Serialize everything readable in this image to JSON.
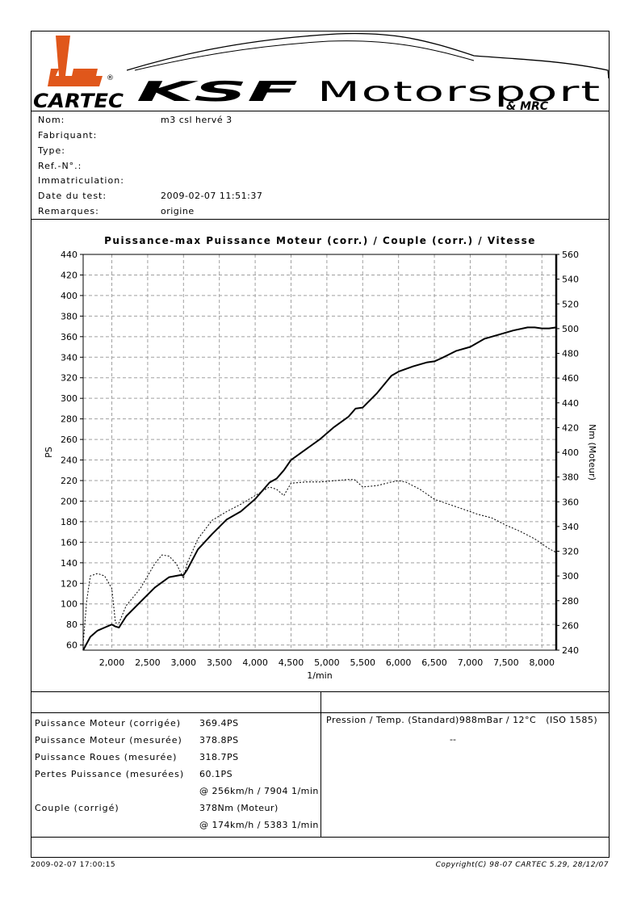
{
  "logo": {
    "cartec_text": "CARTEC",
    "registered_mark": "®",
    "ksf_text": "KSF",
    "motorsport_text": "Motorsport",
    "mrc_text": "& MRC"
  },
  "info": {
    "labels": [
      "Nom:",
      "Fabriquant:",
      "Type:",
      "Ref.-N°.:",
      "Immatriculation:",
      "Date du test:",
      "Remarques:"
    ],
    "values": [
      "m3 csl hervé 3",
      "",
      "",
      "",
      "",
      "2009-02-07 11:51:37",
      "origine"
    ]
  },
  "chart_data": {
    "type": "line",
    "title": "Puissance-max Puissance Moteur (corr.) / Couple (corr.) / Vitesse",
    "xlabel": "1/min",
    "ylabel_left": "PS",
    "ylabel_right": "Nm (Moteur)",
    "xlim": [
      1600,
      8200
    ],
    "ylim_left": [
      55,
      440
    ],
    "ylim_right": [
      240,
      560
    ],
    "x_ticks": [
      "2,000",
      "2,500",
      "3,000",
      "3,500",
      "4,000",
      "4,500",
      "5,000",
      "5,500",
      "6,000",
      "6,500",
      "7,000",
      "7,500",
      "8,000"
    ],
    "x_tick_values": [
      2000,
      2500,
      3000,
      3500,
      4000,
      4500,
      5000,
      5500,
      6000,
      6500,
      7000,
      7500,
      8000
    ],
    "y_left_ticks": [
      60,
      80,
      100,
      120,
      140,
      160,
      180,
      200,
      220,
      240,
      260,
      280,
      300,
      320,
      340,
      360,
      380,
      400,
      420,
      440
    ],
    "y_right_ticks": [
      240,
      260,
      280,
      300,
      320,
      340,
      360,
      380,
      400,
      420,
      440,
      460,
      480,
      500,
      520,
      540,
      560
    ],
    "grid": true,
    "series": [
      {
        "name": "",
        "axis": "left",
        "style": "solid",
        "x": [
          1600,
          1700,
          1800,
          1900,
          2000,
          2050,
          2100,
          2200,
          2400,
          2600,
          2800,
          2950,
          3000,
          3050,
          3200,
          3400,
          3600,
          3800,
          4000,
          4200,
          4300,
          4400,
          4500,
          4700,
          4900,
          5100,
          5300,
          5400,
          5500,
          5700,
          5900,
          6000,
          6200,
          6400,
          6500,
          6600,
          6800,
          7000,
          7200,
          7400,
          7600,
          7800,
          7900,
          8000,
          8100,
          8200
        ],
        "values": [
          55,
          68,
          74,
          77,
          80,
          78,
          77,
          88,
          102,
          116,
          126,
          128,
          128,
          133,
          153,
          168,
          182,
          190,
          202,
          218,
          222,
          230,
          240,
          250,
          260,
          272,
          282,
          290,
          291,
          305,
          322,
          326,
          331,
          335,
          336,
          339,
          346,
          350,
          358,
          362,
          366,
          369,
          369,
          368,
          368,
          369
        ]
      },
      {
        "name": "",
        "axis": "right",
        "style": "dashed",
        "x": [
          1600,
          1650,
          1700,
          1800,
          1900,
          2000,
          2050,
          2100,
          2200,
          2400,
          2600,
          2700,
          2800,
          2900,
          3000,
          3050,
          3200,
          3400,
          3600,
          3800,
          4000,
          4200,
          4300,
          4400,
          4500,
          4700,
          4900,
          5100,
          5300,
          5383,
          5500,
          5700,
          5900,
          6000,
          6100,
          6300,
          6500,
          6700,
          6900,
          7100,
          7300,
          7500,
          7700,
          7900,
          8000,
          8100,
          8200
        ],
        "values": [
          245,
          280,
          300,
          302,
          300,
          290,
          262,
          262,
          276,
          290,
          310,
          317,
          316,
          310,
          298,
          310,
          330,
          345,
          352,
          358,
          365,
          372,
          370,
          365,
          375,
          376,
          376,
          377,
          378,
          378,
          372,
          373,
          376,
          377,
          376,
          370,
          362,
          358,
          354,
          350,
          347,
          341,
          336,
          330,
          326,
          322,
          319
        ]
      }
    ]
  },
  "results": {
    "rows": [
      {
        "label": "Puissance Moteur (corrigée)",
        "value": "369.4PS"
      },
      {
        "label": "Puissance Moteur (mesurée)",
        "value": "378.8PS"
      },
      {
        "label": "Puissance Roues (mesurée)",
        "value": "318.7PS"
      },
      {
        "label": "Pertes Puissance (mesurées)",
        "value": "60.1PS"
      },
      {
        "label": "",
        "value": "@ 256km/h / 7904 1/min"
      },
      {
        "label": "Couple (corrigé)",
        "value": "378Nm (Moteur)"
      },
      {
        "label": "",
        "value": "@ 174km/h / 5383 1/min"
      }
    ],
    "pressure_label": "Pression / Temp. (Standard)",
    "pressure_value": "988mBar / 12°C",
    "standard": "(ISO 1585)",
    "dash": "--"
  },
  "footer": {
    "left": "2009-02-07 17:00:15",
    "right": "Copyright(C) 98-07 CARTEC 5.29, 28/12/07"
  },
  "colors": {
    "cartec_orange": "#e0571b",
    "ink": "#000000",
    "grid": "#a0a0a0"
  }
}
